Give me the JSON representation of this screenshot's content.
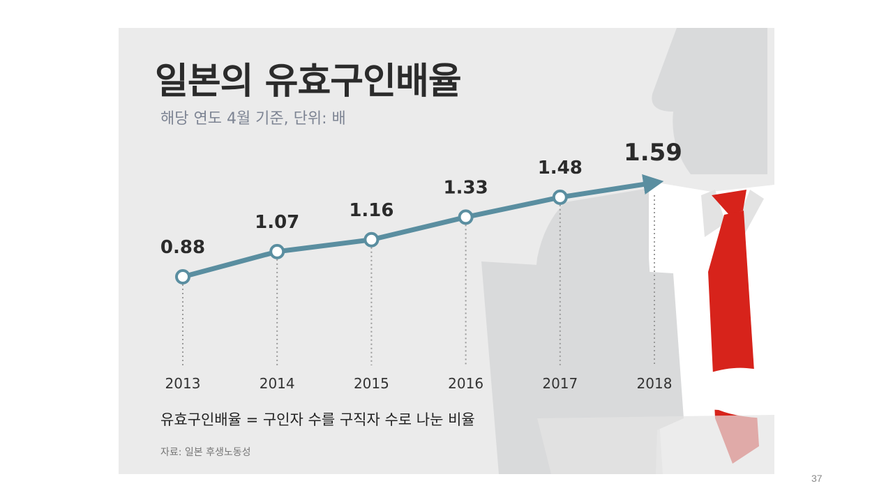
{
  "slide": {
    "title": "일본의 유효구인배율",
    "subtitle": "해당 연도 4월 기준, 단위: 배",
    "note": "유효구인배율 = 구인자 수를 구직자 수로 나눈 비율",
    "source": "자료: 일본 후생노동성",
    "page_number": "37"
  },
  "chart_data": {
    "type": "line",
    "title": "일본의 유효구인배율",
    "subtitle": "해당 연도 4월 기준, 단위: 배",
    "categories": [
      "2013",
      "2014",
      "2015",
      "2016",
      "2017",
      "2018"
    ],
    "values": [
      0.88,
      1.07,
      1.16,
      1.33,
      1.48,
      1.59
    ],
    "value_labels": [
      "0.88",
      "1.07",
      "1.16",
      "1.33",
      "1.48",
      "1.59"
    ],
    "xlabel": "",
    "ylabel": "",
    "ylim": [
      0.7,
      1.7
    ],
    "grid": false,
    "legend": "none",
    "line_color": "#5a8ea0",
    "last_point_marker": "arrow"
  },
  "colors": {
    "background": "#ebebeb",
    "tie": "#d7231b",
    "silhouette": "#d9dadb",
    "shirt": "#ffffff"
  }
}
